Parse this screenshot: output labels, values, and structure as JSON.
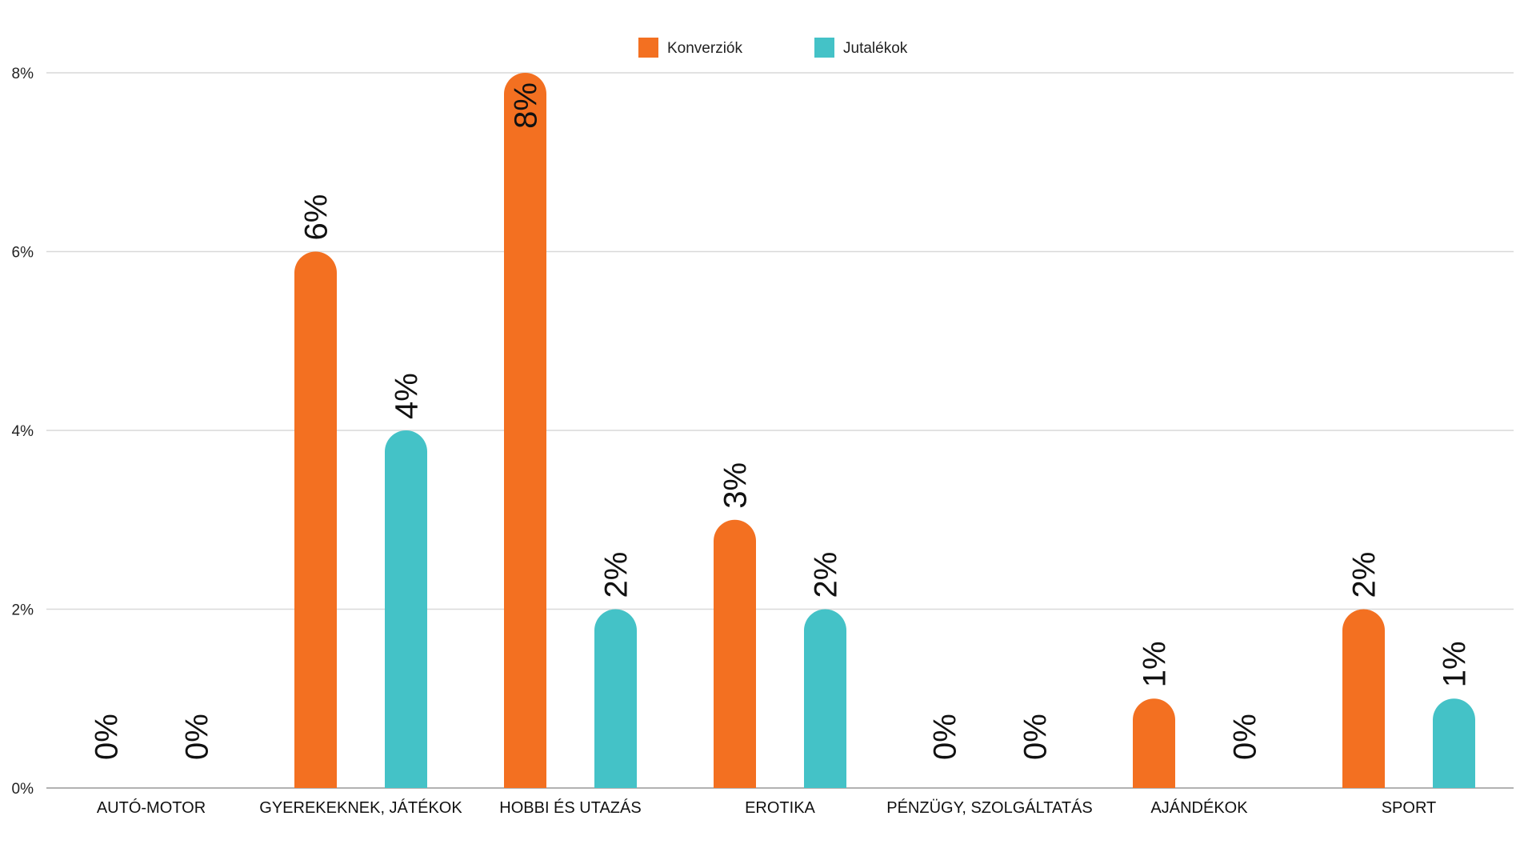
{
  "chart_data": {
    "type": "bar",
    "title": "",
    "xlabel": "",
    "ylabel": "",
    "ylim": [
      0,
      8
    ],
    "yticks": [
      0,
      2,
      4,
      6,
      8
    ],
    "ytick_labels": [
      "0%",
      "2%",
      "4%",
      "6%",
      "8%"
    ],
    "grid": true,
    "legend_position": "top-center",
    "categories": [
      "AUTÓ-MOTOR",
      "GYEREKEKNEK, JÁTÉKOK",
      "HOBBI ÉS UTAZÁS",
      "EROTIKA",
      "PÉNZÜGY, SZOLGÁLTATÁS",
      "AJÁNDÉKOK",
      "SPORT"
    ],
    "series": [
      {
        "name": "Konverziók",
        "color": "#f37021",
        "values": [
          0,
          6,
          8,
          3,
          0,
          1,
          2
        ],
        "labels": [
          "0%",
          "6%",
          "8%",
          "3%",
          "0%",
          "1%",
          "2%"
        ]
      },
      {
        "name": "Jutalékok",
        "color": "#44c2c7",
        "values": [
          0,
          4,
          2,
          2,
          0,
          0,
          1
        ],
        "labels": [
          "0%",
          "4%",
          "2%",
          "2%",
          "0%",
          "0%",
          "1%"
        ]
      }
    ]
  }
}
